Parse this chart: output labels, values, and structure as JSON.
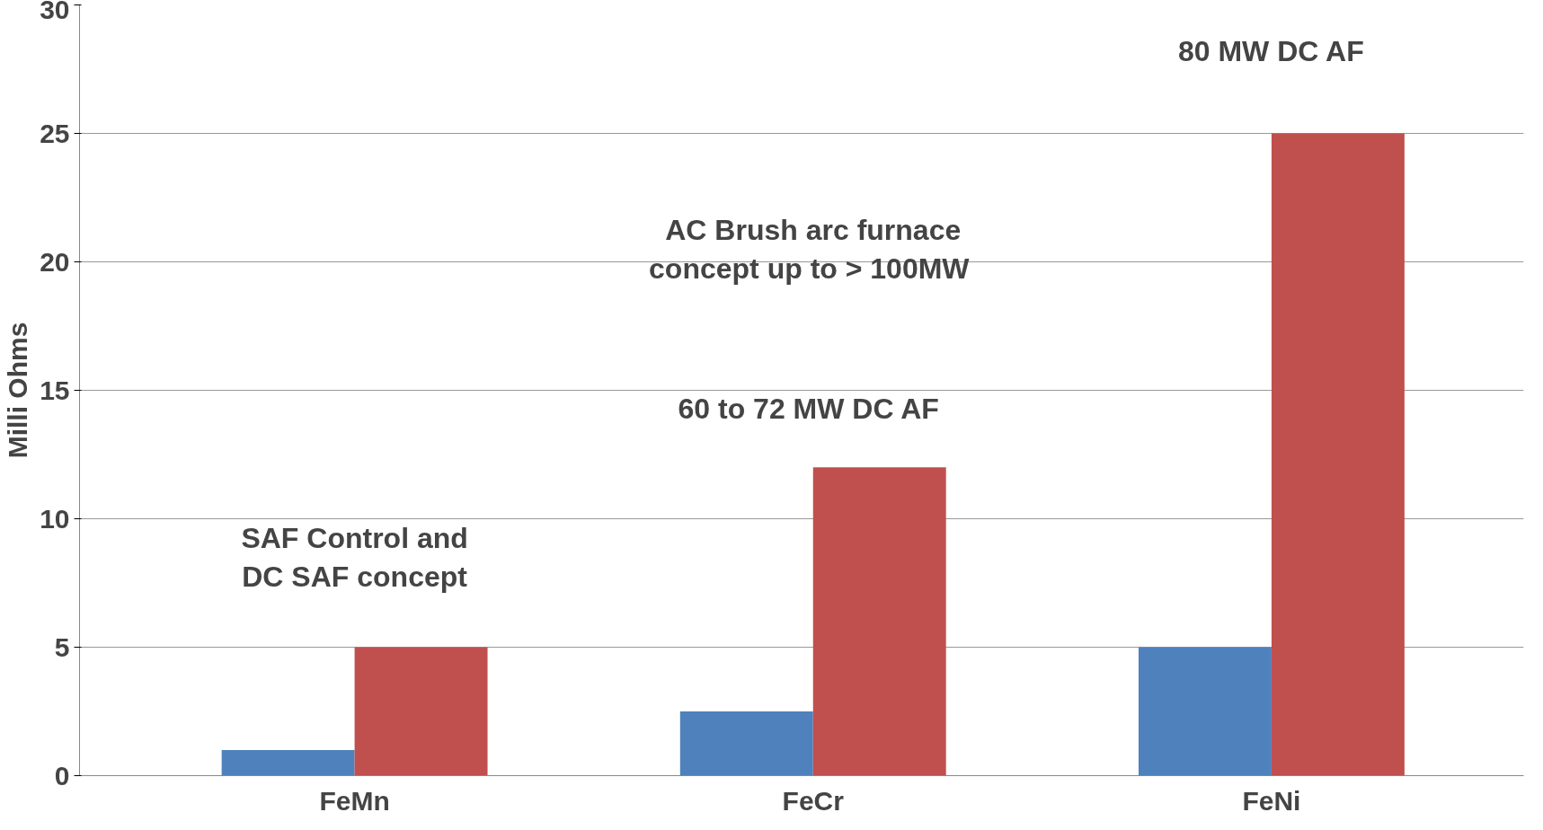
{
  "chart_data": {
    "type": "bar",
    "ylabel": "Milli Ohms",
    "categories": [
      "FeMn",
      "FeCr",
      "FeNi"
    ],
    "series": [
      {
        "color": "#4f81bd",
        "values": [
          1,
          2.5,
          5
        ]
      },
      {
        "color": "#c0504d",
        "values": [
          5,
          12,
          25
        ]
      }
    ],
    "ylim": [
      0,
      30
    ],
    "yticks": [
      0,
      5,
      10,
      15,
      20,
      25,
      30
    ],
    "grid": "y",
    "annotations": [
      "SAF Control and\nDC SAF concept",
      "60 to 72 MW  DC AF",
      "AC Brush arc furnace\nconcept up  to > 100MW",
      "80 MW DC AF"
    ]
  }
}
